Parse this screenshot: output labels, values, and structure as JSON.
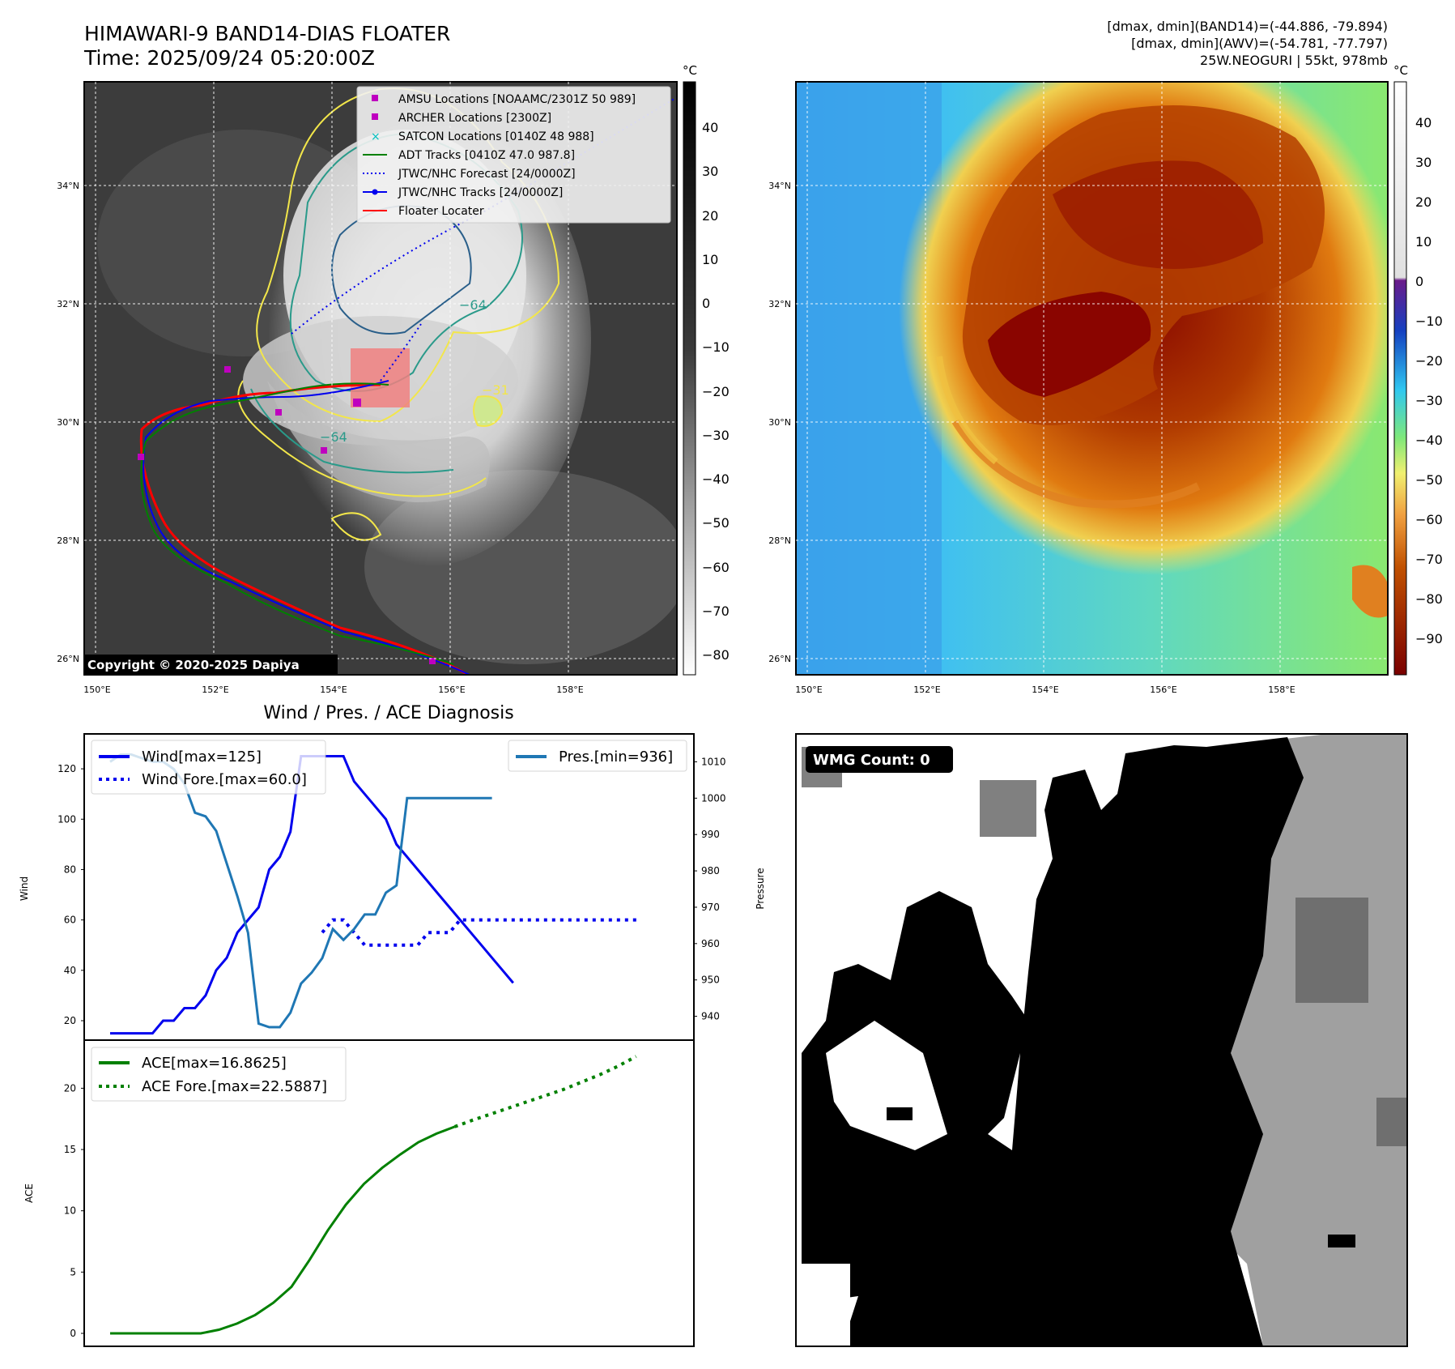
{
  "header": {
    "title_line1": "HIMAWARI-9 BAND14-DIAS FLOATER",
    "title_line2": "Time: 2025/09/24 05:20:00Z",
    "info_line1": "[dmax, dmin](BAND14)=(-44.886, -79.894)",
    "info_line2": "[dmax, dmin](AWV)=(-54.781, -77.797)",
    "info_line3": "25W.NEOGURI | 55kt, 978mb"
  },
  "colors": {
    "wind": "#0000ee",
    "pressure": "#1f77b4",
    "ace": "#008000",
    "floater": "#ff0000",
    "adt": "#008000",
    "satcon": "#00bfbf",
    "amsu": "#bf00bf",
    "contour_yellow": "#f2e64a",
    "contour_teal": "#2a9a8a",
    "contour_blue": "#2a5f8a"
  },
  "map_axes": {
    "lat_ticks": [
      "34°N",
      "32°N",
      "30°N",
      "28°N",
      "26°N"
    ],
    "lon_ticks": [
      "150°E",
      "152°E",
      "154°E",
      "156°E",
      "158°E"
    ],
    "contour_labels": [
      "−64",
      "−31",
      "−64"
    ]
  },
  "ir_map": {
    "legend": [
      {
        "label": "AMSU Locations [NOAAMC/2301Z 50 989]",
        "marker": "square",
        "color": "#bf00bf"
      },
      {
        "label": "ARCHER Locations [2300Z]",
        "marker": "square",
        "color": "#bf00bf"
      },
      {
        "label": "SATCON Locations [0140Z 48 988]",
        "marker": "x",
        "color": "#00bfbf"
      },
      {
        "label": "ADT Tracks [0410Z 47.0 987.8]",
        "marker": "line",
        "color": "#008000"
      },
      {
        "label": "JTWC/NHC Forecast [24/0000Z]",
        "marker": "dotted",
        "color": "#0000ee"
      },
      {
        "label": "JTWC/NHC Tracks [24/0000Z]",
        "marker": "line-dot",
        "color": "#0000ee"
      },
      {
        "label": "Floater Locater",
        "marker": "line",
        "color": "#ff0000"
      }
    ],
    "copyright": "Copyright © 2020-2025 Dapiya",
    "colorbar": {
      "unit": "°C",
      "ticks": [
        "40",
        "30",
        "20",
        "10",
        "0",
        "−10",
        "−20",
        "−30",
        "−40",
        "−50",
        "−60",
        "−70",
        "−80"
      ]
    }
  },
  "awv_map": {
    "colorbar": {
      "unit": "°C",
      "ticks": [
        "40",
        "30",
        "20",
        "10",
        "0",
        "−10",
        "−20",
        "−30",
        "−40",
        "−50",
        "−60",
        "−70",
        "−80",
        "−90"
      ]
    }
  },
  "diagnosis": {
    "title": "Wind / Pres. / ACE Diagnosis",
    "wind_ylabel": "Wind",
    "pres_ylabel": "Pressure",
    "ace_ylabel": "ACE",
    "legend_wind": "Wind[max=125]",
    "legend_wind_fore": "Wind Fore.[max=60.0]",
    "legend_pres": "Pres.[min=936]",
    "legend_ace": "ACE[max=16.8625]",
    "legend_ace_fore": "ACE Fore.[max=22.5887]",
    "wind_ticks": [
      "120",
      "100",
      "80",
      "60",
      "40",
      "20"
    ],
    "pres_ticks": [
      "1010",
      "1000",
      "990",
      "980",
      "970",
      "960",
      "950",
      "940"
    ],
    "ace_ticks": [
      "20",
      "15",
      "10",
      "5",
      "0"
    ]
  },
  "wmg": {
    "label": "WMG Count: 0"
  },
  "chart_data": [
    {
      "type": "line",
      "title": "Wind / Pres. / ACE Diagnosis",
      "ylabel": "Wind",
      "ylim": [
        11,
        130
      ],
      "x": [
        0,
        1,
        2,
        3,
        4,
        5,
        6,
        7,
        8,
        9,
        10,
        11,
        12,
        13,
        14,
        15,
        16,
        17,
        18,
        19,
        20,
        21,
        22,
        23,
        24,
        25,
        26,
        27,
        28,
        29,
        30,
        31,
        32,
        33,
        34,
        35,
        36,
        37,
        38,
        39,
        40,
        41,
        42,
        43,
        44,
        45,
        46,
        47,
        48,
        49,
        50
      ],
      "series": [
        {
          "name": "Wind",
          "x": [
            0,
            1,
            2,
            3,
            4,
            5,
            6,
            7,
            8,
            9,
            10,
            11,
            12,
            13,
            14,
            15,
            16,
            17,
            18,
            19,
            20,
            21,
            22,
            23,
            24,
            25,
            26,
            27,
            28,
            29,
            30,
            31,
            32,
            33,
            34,
            35,
            36,
            37,
            38
          ],
          "values": [
            15,
            15,
            15,
            15,
            15,
            20,
            20,
            25,
            25,
            30,
            40,
            45,
            55,
            60,
            65,
            80,
            85,
            95,
            125,
            125,
            125,
            125,
            125,
            115,
            110,
            105,
            100,
            90,
            85,
            80,
            75,
            70,
            65,
            60,
            55,
            50,
            45,
            40,
            35
          ]
        },
        {
          "name": "Wind Fore.",
          "x": [
            20,
            21,
            22,
            23,
            24,
            25,
            26,
            27,
            28,
            29,
            30,
            31,
            32,
            33,
            34,
            35,
            36,
            37,
            38,
            39,
            40,
            41,
            42,
            43,
            44,
            45,
            46,
            47,
            48,
            49,
            50
          ],
          "values": [
            55,
            60,
            60,
            55,
            50,
            50,
            50,
            50,
            50,
            50,
            55,
            55,
            55,
            60,
            60,
            60,
            60,
            60,
            60,
            60,
            60,
            60,
            60,
            60,
            60,
            60,
            60,
            60,
            60,
            60,
            60
          ]
        },
        {
          "name": "Pres.",
          "x": [
            0,
            1,
            2,
            3,
            4,
            5,
            6,
            7,
            8,
            9,
            10,
            11,
            12,
            13,
            14,
            15,
            16,
            17,
            18,
            19,
            20,
            21,
            22,
            23,
            24,
            25,
            26,
            27,
            28,
            29,
            30,
            31,
            32,
            33,
            34,
            35,
            36
          ],
          "values": [
            1010,
            1012,
            1012,
            1011,
            1010,
            1010,
            1008,
            1004,
            996,
            995,
            991,
            982,
            973,
            963,
            938,
            937,
            937,
            941,
            949,
            952,
            956,
            964,
            961,
            964,
            968,
            968,
            974,
            976,
            1000,
            1000,
            1000,
            1000,
            1000,
            1000,
            1000,
            1000,
            1000
          ]
        }
      ]
    },
    {
      "type": "line",
      "ylabel": "ACE",
      "ylim": [
        -1,
        23.5
      ],
      "series": [
        {
          "name": "ACE",
          "x": [
            0,
            2,
            4,
            6,
            8,
            10,
            12,
            14,
            16,
            18,
            20,
            22,
            24,
            26,
            28,
            30,
            32,
            34,
            36,
            38
          ],
          "values": [
            0,
            0,
            0,
            0,
            0,
            0,
            0.3,
            0.8,
            1.5,
            2.5,
            3.8,
            6,
            8.4,
            10.5,
            12.2,
            13.5,
            14.6,
            15.6,
            16.3,
            16.86
          ]
        },
        {
          "name": "ACE Fore.",
          "x": [
            38,
            40,
            42,
            44,
            46,
            48,
            50,
            52,
            54,
            56,
            58
          ],
          "values": [
            16.86,
            17.4,
            17.9,
            18.4,
            18.9,
            19.4,
            19.9,
            20.5,
            21.1,
            21.8,
            22.59
          ]
        }
      ]
    }
  ]
}
